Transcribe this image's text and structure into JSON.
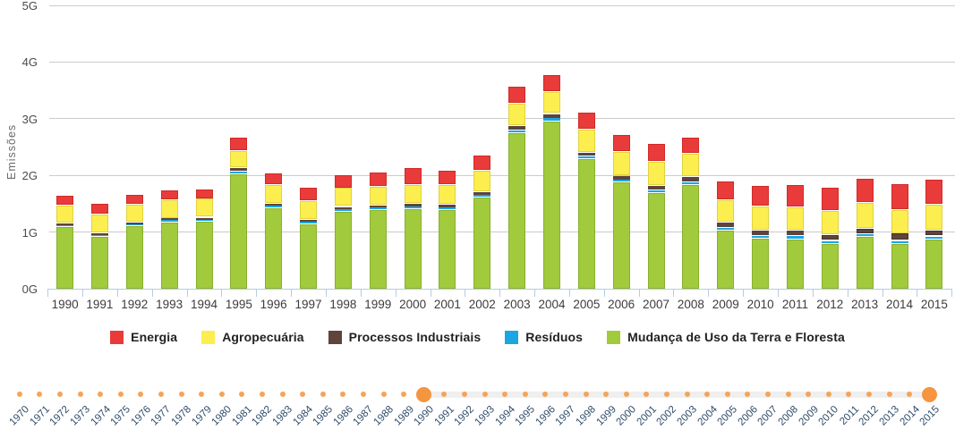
{
  "y_axis": {
    "title": "Emissões",
    "ticks": [
      {
        "label": "5G",
        "value": 5
      },
      {
        "label": "4G",
        "value": 4
      },
      {
        "label": "3G",
        "value": 3
      },
      {
        "label": "2G",
        "value": 2
      },
      {
        "label": "1G",
        "value": 1
      },
      {
        "label": "0G",
        "value": 0
      }
    ]
  },
  "chart_data": {
    "type": "bar",
    "stacked": true,
    "title": "",
    "xlabel": "",
    "ylabel": "Emissões",
    "ylim": [
      0,
      5
    ],
    "y_unit": "G",
    "grid": true,
    "legend_position": "bottom",
    "categories": [
      "1990",
      "1991",
      "1992",
      "1993",
      "1994",
      "1995",
      "1996",
      "1997",
      "1998",
      "1999",
      "2000",
      "2001",
      "2002",
      "2003",
      "2004",
      "2005",
      "2006",
      "2007",
      "2008",
      "2009",
      "2010",
      "2011",
      "2012",
      "2013",
      "2014",
      "2015"
    ],
    "series": [
      {
        "key": "mudanca-uso-terra",
        "name": "Mudança de Uso da Terra e Floresta",
        "color": "#a2ca3d",
        "border": "#88b02e",
        "values": [
          1.1,
          0.93,
          1.12,
          1.19,
          1.2,
          2.04,
          1.44,
          1.15,
          1.38,
          1.4,
          1.42,
          1.4,
          1.62,
          2.76,
          2.96,
          2.31,
          1.89,
          1.7,
          1.84,
          1.04,
          0.9,
          0.89,
          0.81,
          0.93,
          0.81,
          0.89
        ]
      },
      {
        "key": "residuos",
        "name": "Resíduos",
        "color": "#1ba6e1",
        "border": "#0e8ec5",
        "values": [
          0.02,
          0.02,
          0.02,
          0.02,
          0.02,
          0.04,
          0.03,
          0.03,
          0.03,
          0.03,
          0.03,
          0.04,
          0.04,
          0.04,
          0.06,
          0.04,
          0.04,
          0.05,
          0.05,
          0.05,
          0.05,
          0.06,
          0.05,
          0.05,
          0.05,
          0.05
        ]
      },
      {
        "key": "processos-industriais",
        "name": "Processos Industriais",
        "color": "#5e443a",
        "border": "#48332b",
        "values": [
          0.04,
          0.04,
          0.04,
          0.04,
          0.05,
          0.06,
          0.05,
          0.05,
          0.05,
          0.05,
          0.06,
          0.06,
          0.06,
          0.08,
          0.08,
          0.07,
          0.08,
          0.08,
          0.09,
          0.09,
          0.09,
          0.09,
          0.1,
          0.1,
          0.12,
          0.1
        ]
      },
      {
        "key": "agropecuaria",
        "name": "Agropecuária",
        "color": "#fcee4f",
        "border": "#e0d23e",
        "values": [
          0.32,
          0.33,
          0.32,
          0.33,
          0.33,
          0.3,
          0.33,
          0.33,
          0.33,
          0.33,
          0.33,
          0.35,
          0.38,
          0.4,
          0.38,
          0.41,
          0.42,
          0.42,
          0.41,
          0.4,
          0.42,
          0.41,
          0.43,
          0.45,
          0.43,
          0.46
        ]
      },
      {
        "key": "energia",
        "name": "Energia",
        "color": "#e83b3a",
        "border": "#cf2b29",
        "values": [
          0.17,
          0.19,
          0.18,
          0.18,
          0.18,
          0.23,
          0.21,
          0.23,
          0.24,
          0.26,
          0.3,
          0.26,
          0.27,
          0.3,
          0.3,
          0.3,
          0.3,
          0.31,
          0.29,
          0.33,
          0.36,
          0.39,
          0.41,
          0.43,
          0.46,
          0.44
        ]
      }
    ]
  },
  "legend": {
    "items": [
      {
        "key": "energia",
        "label": "Energia",
        "color": "#e83b3a"
      },
      {
        "key": "agropecuaria",
        "label": "Agropecuária",
        "color": "#fcee4f"
      },
      {
        "key": "processos-industriais",
        "label": "Processos Industriais",
        "color": "#5e443a"
      },
      {
        "key": "residuos",
        "label": "Resíduos",
        "color": "#1ba6e1"
      },
      {
        "key": "mudanca-uso-terra",
        "label": "Mudança de Uso da Terra e Floresta",
        "color": "#a2ca3d"
      }
    ]
  },
  "timeline": {
    "years": [
      "1970",
      "1971",
      "1972",
      "1973",
      "1974",
      "1975",
      "1976",
      "1977",
      "1978",
      "1979",
      "1980",
      "1981",
      "1982",
      "1983",
      "1984",
      "1985",
      "1986",
      "1987",
      "1988",
      "1989",
      "1990",
      "1991",
      "1992",
      "1993",
      "1994",
      "1995",
      "1996",
      "1997",
      "1998",
      "1999",
      "2000",
      "2001",
      "2002",
      "2003",
      "2004",
      "2005",
      "2006",
      "2007",
      "2008",
      "2009",
      "2010",
      "2011",
      "2012",
      "2013",
      "2014",
      "2015"
    ],
    "selected_start": "1990",
    "selected_end": "2015",
    "dot_color": "#f4a458",
    "handle_color": "#f6953f"
  }
}
